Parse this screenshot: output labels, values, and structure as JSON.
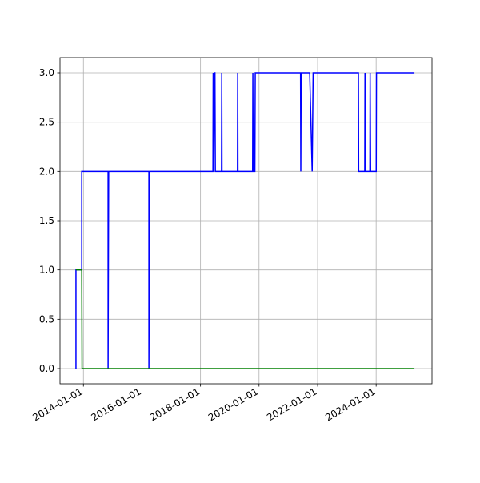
{
  "chart_data": {
    "type": "line",
    "xlim": [
      "2013-03-15",
      "2025-11-28"
    ],
    "xticks": [
      "2014-01-01",
      "2016-01-01",
      "2018-01-01",
      "2020-01-01",
      "2022-01-01",
      "2024-01-01"
    ],
    "ylim": [
      -0.154,
      3.154
    ],
    "yticks": [
      {
        "value": 0,
        "label": "0.0"
      },
      0.5,
      {
        "value": 1,
        "label": "1.0"
      },
      1.5,
      {
        "value": 2,
        "label": "2.0"
      },
      2.5,
      {
        "value": 3,
        "label": "3.0"
      }
    ],
    "grid": true,
    "series": [
      {
        "color": "#0000ff",
        "x": [
          "2013-09-30",
          "2013-09-30",
          "2013-12-11",
          "2013-12-11",
          "2014-11-05",
          "2014-11-05",
          "2014-11-12",
          "2016-03-28",
          "2016-03-28",
          "2016-04-05",
          "2018-06-05",
          "2018-06-08",
          "2018-06-15",
          "2018-06-22",
          "2018-06-30",
          "2018-07-05",
          "2018-09-20",
          "2018-09-23",
          "2018-09-26",
          "2019-04-07",
          "2019-04-10",
          "2019-04-13",
          "2019-10-13",
          "2019-10-16",
          "2019-10-20",
          "2019-11-10",
          "2019-11-15",
          "2021-06-02",
          "2021-06-05",
          "2021-06-09",
          "2021-09-24",
          "2021-10-25",
          "2021-11-06",
          "2023-05-25",
          "2023-05-28",
          "2023-08-12",
          "2023-08-15",
          "2023-08-19",
          "2023-10-15",
          "2023-10-18",
          "2023-10-24",
          "2024-01-02",
          "2024-01-05",
          "2025-04-23"
        ],
        "values": [
          0,
          1,
          1,
          2,
          2,
          0,
          2,
          2,
          0,
          2,
          2,
          3,
          2,
          3,
          3,
          2,
          2,
          3,
          2,
          2,
          3,
          2,
          2,
          3,
          2,
          2,
          3,
          3,
          2,
          3,
          3,
          2,
          3,
          3,
          2,
          2,
          3,
          2,
          2,
          3,
          2,
          2,
          3,
          3
        ]
      },
      {
        "color": "#008000",
        "x": [
          "2013-09-30",
          "2013-12-11",
          "2013-12-15",
          "2025-04-23"
        ],
        "values": [
          1,
          1,
          0,
          0
        ]
      }
    ]
  }
}
